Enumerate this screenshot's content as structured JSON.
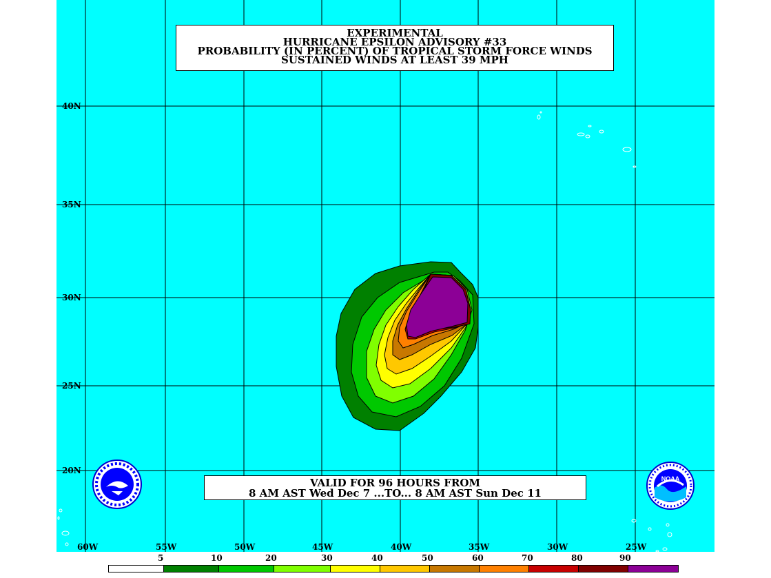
{
  "title": {
    "line1": "EXPERIMENTAL",
    "line2": "HURRICANE EPSILON ADVISORY #33",
    "line3": "PROBABILITY (IN PERCENT) OF TROPICAL STORM FORCE WINDS",
    "line4": "SUSTAINED WINDS AT LEAST 39 MPH"
  },
  "valid": {
    "line1": "VALID FOR 96 HOURS FROM",
    "line2": "8 AM AST Wed Dec 7 ...TO... 8 AM AST Sun Dec 11"
  },
  "latitude_labels": [
    "40N",
    "35N",
    "30N",
    "25N",
    "20N"
  ],
  "longitude_labels": [
    "60W",
    "55W",
    "50W",
    "45W",
    "40W",
    "35W",
    "30W",
    "25W"
  ],
  "legend": {
    "labels": [
      "5",
      "10",
      "20",
      "30",
      "40",
      "50",
      "60",
      "70",
      "80",
      "90"
    ],
    "colors": [
      "#ffffff",
      "#008000",
      "#00c800",
      "#80ff00",
      "#ffff00",
      "#ffc800",
      "#c87800",
      "#ff8000",
      "#c80000",
      "#800000",
      "#8c0096"
    ]
  },
  "colors": {
    "ocean": "#00ffff",
    "grid": "#000000",
    "land_outline": "#ffffff"
  },
  "logos": {
    "left": "national-weather-service-logo",
    "right": "noaa-logo",
    "noaa_text": "NOAA"
  }
}
